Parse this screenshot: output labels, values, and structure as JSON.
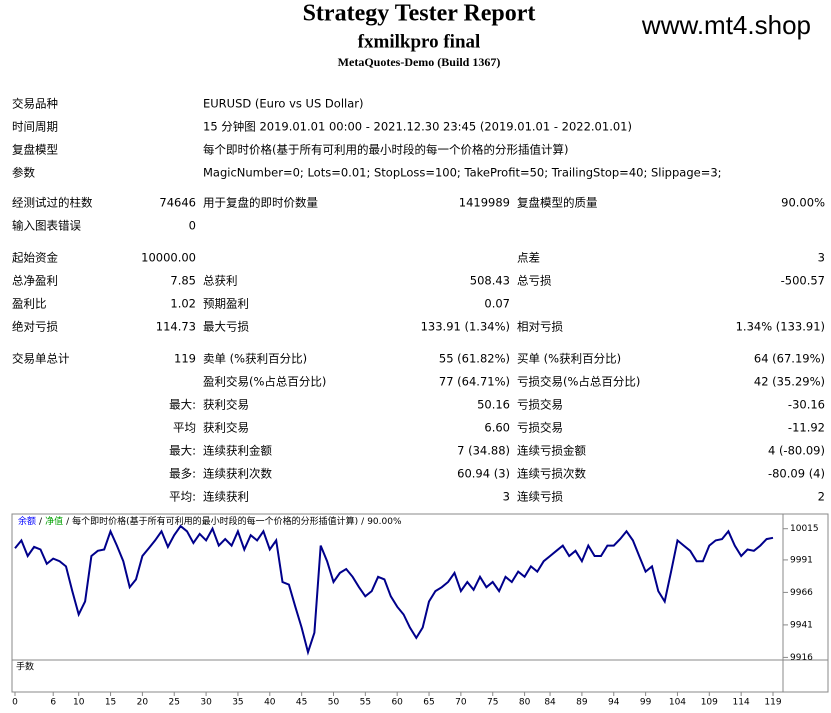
{
  "header": {
    "title": "Strategy Tester Report",
    "subtitle": "fxmilkpro final",
    "build": "MetaQuotes-Demo (Build 1367)",
    "watermark": "www.mt4.shop"
  },
  "info": [
    [
      "交易品种",
      "EURUSD (Euro vs US Dollar)"
    ],
    [
      "时间周期",
      "15 分钟图 2019.01.01 00:00 - 2021.12.30 23:45 (2019.01.01 - 2022.01.01)"
    ],
    [
      "复盘模型",
      "每个即时价格(基于所有可利用的最小时段的每一个价格的分形插值计算)"
    ],
    [
      "参数",
      "MagicNumber=0; Lots=0.01; StopLoss=100; TakeProfit=50; TrailingStop=40; Slippage=3;"
    ]
  ],
  "stats": [
    [
      [
        "经测试过的柱数",
        "74646",
        "用于复盘的即时价数量",
        "1419989",
        "复盘模型的质量",
        "90.00%"
      ],
      [
        "输入图表错误",
        "0",
        null,
        null,
        null,
        null
      ]
    ],
    [
      [
        "起始资金",
        "10000.00",
        null,
        null,
        "点差",
        "3"
      ],
      [
        "总净盈利",
        "7.85",
        "总获利",
        "508.43",
        "总亏损",
        "-500.57"
      ],
      [
        "盈利比",
        "1.02",
        "预期盈利",
        "0.07",
        null,
        null
      ],
      [
        "绝对亏损",
        "114.73",
        "最大亏损",
        "133.91 (1.34%)",
        "相对亏损",
        "1.34% (133.91)"
      ]
    ],
    [
      [
        "交易单总计",
        "119",
        "卖单 (%获利百分比)",
        "55 (61.82%)",
        "买单 (%获利百分比)",
        "64 (67.19%)"
      ],
      [
        null,
        null,
        "盈利交易(%占总百分比)",
        "77 (64.71%)",
        "亏损交易(%占总百分比)",
        "42 (35.29%)"
      ],
      [
        null,
        "最大:",
        "获利交易",
        "50.16",
        "亏损交易",
        "-30.16"
      ],
      [
        null,
        "平均",
        "获利交易",
        "6.60",
        "亏损交易",
        "-11.92"
      ],
      [
        null,
        "最大:",
        "连续获利金额",
        "7 (34.88)",
        "连续亏损金额",
        "4 (-80.09)"
      ],
      [
        null,
        "最多:",
        "连续获利次数",
        "60.94 (3)",
        "连续亏损次数",
        "-80.09 (4)"
      ],
      [
        null,
        "平均:",
        "连续获利",
        "3",
        "连续亏损",
        "2"
      ]
    ]
  ],
  "chart": {
    "type": "line",
    "color": "#00008b",
    "legend": [
      {
        "text": "余额",
        "color": "#0000ff"
      },
      {
        "text": "净值",
        "color": "#00a000"
      },
      {
        "text": "每个即时价格(基于所有可利用的最小时段的每一个价格的分形插值计算)",
        "color": "#000000"
      },
      {
        "text": "90.00%",
        "color": "#000000"
      }
    ],
    "legend_separator": "/",
    "volume_label": "手数",
    "xlim": [
      0,
      119
    ],
    "ylim": [
      9914,
      10024
    ],
    "yticks": [
      10015,
      9991,
      9966,
      9941,
      9916
    ],
    "xticks": [
      0,
      6,
      10,
      15,
      20,
      25,
      30,
      35,
      40,
      45,
      50,
      55,
      60,
      65,
      70,
      75,
      80,
      84,
      89,
      94,
      99,
      104,
      109,
      114,
      119
    ],
    "y": [
      10000,
      10006,
      9994,
      10001,
      9999,
      9988,
      9992,
      9990,
      9986,
      9967,
      9949,
      9959,
      9994,
      9998,
      9999,
      10013,
      10002,
      9990,
      9970,
      9976,
      9994,
      10000,
      10006,
      10013,
      10001,
      10010,
      10017,
      10013,
      10004,
      10011,
      10006,
      10015,
      10002,
      10007,
      10002,
      10013,
      9999,
      10010,
      10006,
      10013,
      9999,
      10006,
      9974,
      9972,
      9955,
      9939,
      9920,
      9935,
      10002,
      9990,
      9974,
      9981,
      9984,
      9978,
      9970,
      9963,
      9967,
      9978,
      9976,
      9963,
      9955,
      9949,
      9939,
      9931,
      9939,
      9959,
      9967,
      9970,
      9974,
      9981,
      9967,
      9974,
      9968,
      9978,
      9970,
      9974,
      9967,
      9978,
      9974,
      9982,
      9978,
      9986,
      9982,
      9990,
      9994,
      9998,
      10002,
      9994,
      9998,
      9990,
      10002,
      9994,
      9994,
      10002,
      10002,
      10007,
      10013,
      10006,
      9994,
      9982,
      9986,
      9967,
      9959,
      9982,
      10006,
      10002,
      9998,
      9990,
      9990,
      10002,
      10006,
      10007,
      10013,
      10002,
      9994,
      9999,
      9998,
      10002,
      10007,
      10008
    ]
  }
}
